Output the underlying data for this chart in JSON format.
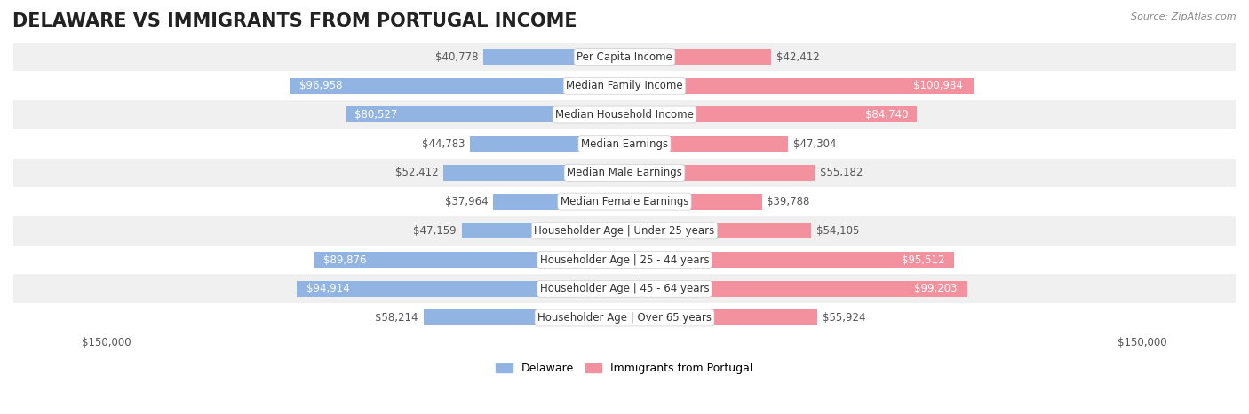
{
  "title": "DELAWARE VS IMMIGRANTS FROM PORTUGAL INCOME",
  "source": "Source: ZipAtlas.com",
  "categories": [
    "Per Capita Income",
    "Median Family Income",
    "Median Household Income",
    "Median Earnings",
    "Median Male Earnings",
    "Median Female Earnings",
    "Householder Age | Under 25 years",
    "Householder Age | 25 - 44 years",
    "Householder Age | 45 - 64 years",
    "Householder Age | Over 65 years"
  ],
  "delaware_values": [
    40778,
    96958,
    80527,
    44783,
    52412,
    37964,
    47159,
    89876,
    94914,
    58214
  ],
  "portugal_values": [
    42412,
    100984,
    84740,
    47304,
    55182,
    39788,
    54105,
    95512,
    99203,
    55924
  ],
  "delaware_labels": [
    "$40,778",
    "$96,958",
    "$80,527",
    "$44,783",
    "$52,412",
    "$37,964",
    "$47,159",
    "$89,876",
    "$94,914",
    "$58,214"
  ],
  "portugal_labels": [
    "$42,412",
    "$100,984",
    "$84,740",
    "$47,304",
    "$55,182",
    "$39,788",
    "$54,105",
    "$95,512",
    "$99,203",
    "$55,924"
  ],
  "max_val": 150000,
  "delaware_color": "#92b4e3",
  "portugal_color": "#f4919f",
  "delaware_label_color_inner": "#ffffff",
  "delaware_label_color_outer": "#555555",
  "portugal_label_color_inner": "#ffffff",
  "portugal_label_color_outer": "#555555",
  "background_color": "#ffffff",
  "row_bg_colors": [
    "#f0f0f0",
    "#ffffff"
  ],
  "title_fontsize": 15,
  "label_fontsize": 8.5,
  "category_fontsize": 8.5,
  "legend_fontsize": 9,
  "inner_label_threshold": 60000
}
